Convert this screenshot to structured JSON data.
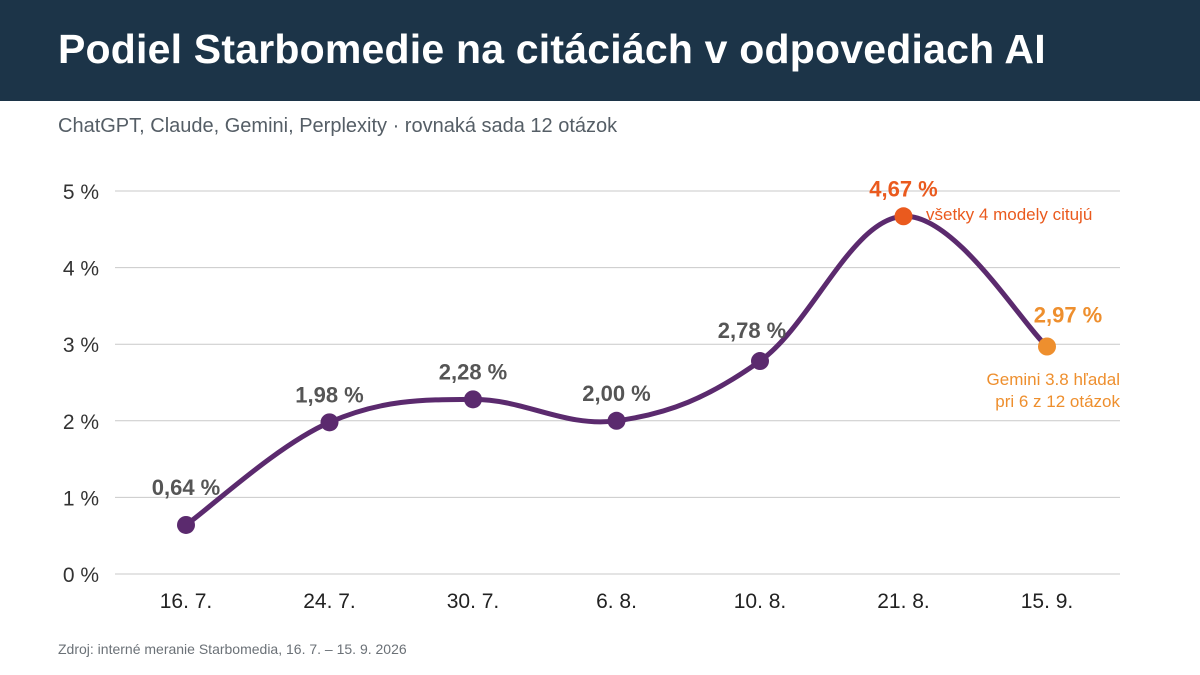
{
  "header": {
    "title": "Podiel Starbomedie na citáciách v odpovediach AI",
    "subtitle": "ChatGPT, Claude, Gemini, Perplexity · rovnaká sada 12 otázok"
  },
  "footer": {
    "source": "Zdroj: interné meranie Starbomedia, 16. 7. – 15. 9. 2026"
  },
  "colors": {
    "header_bg": "#1c3448",
    "line": "#5b2a6e",
    "peak": "#ea5a1e",
    "last": "#ee8f2e",
    "label": "#555555",
    "grid": "#c9c9c9"
  },
  "chart_data": {
    "type": "line",
    "title": "Podiel Starbomedie na citáciách v odpovediach AI",
    "subtitle": "ChatGPT, Claude, Gemini, Perplexity · rovnaká sada 12 otázok",
    "xlabel": "",
    "ylabel": "",
    "ylim": [
      0,
      5
    ],
    "yticks": [
      0,
      1,
      2,
      3,
      4,
      5
    ],
    "ytick_labels": [
      "0 %",
      "1 %",
      "2 %",
      "3 %",
      "4 %",
      "5 %"
    ],
    "grid": true,
    "categories": [
      "16. 7.",
      "24. 7.",
      "30. 7.",
      "6. 8.",
      "10. 8.",
      "21. 8.",
      "15. 9."
    ],
    "values": [
      0.64,
      1.98,
      2.28,
      2.0,
      2.78,
      4.67,
      2.97
    ],
    "value_labels": [
      "0,64 %",
      "1,98 %",
      "2,28 %",
      "2,00 %",
      "2,78 %",
      "4,67 %",
      "2,97 %"
    ],
    "annotations": [
      {
        "index": 5,
        "text": [
          "všetky 4 modely citujú"
        ],
        "color": "#ea5a1e"
      },
      {
        "index": 6,
        "text": [
          "Gemini 3.8 hľadal",
          "pri 6 z 12 otázok"
        ],
        "color": "#ee8f2e"
      }
    ]
  }
}
